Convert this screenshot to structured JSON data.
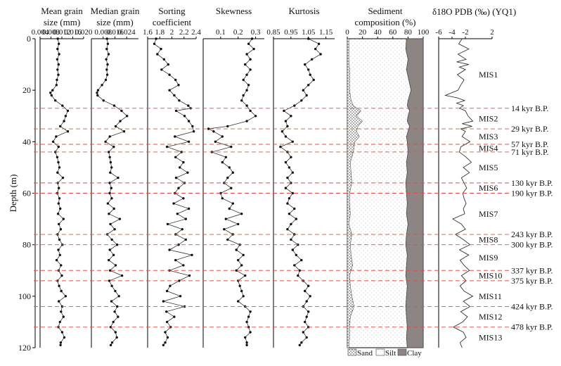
{
  "chart_data": {
    "type": "line",
    "y_axis": {
      "label": "Depth (m)",
      "range": [
        0,
        120
      ],
      "ticks": [
        0,
        20,
        40,
        60,
        80,
        100,
        120
      ]
    },
    "panels": [
      {
        "id": "mean",
        "title": [
          "Mean grain",
          "size (mm)"
        ],
        "xlim": [
          0.004,
          0.02
        ],
        "ticks": [
          "0.004",
          "0.008",
          "0.012",
          "0.016",
          "0.020"
        ],
        "tick_values": [
          0.004,
          0.008,
          0.012,
          0.016,
          0.02
        ],
        "depth": [
          0,
          2,
          4,
          6,
          8,
          10,
          12,
          14,
          16,
          18,
          20,
          21,
          22,
          24,
          26,
          28,
          30,
          32,
          34,
          36,
          38,
          40,
          42,
          44,
          46,
          48,
          50,
          52,
          54,
          56,
          58,
          60,
          62,
          64,
          66,
          68,
          70,
          72,
          74,
          76,
          78,
          80,
          82,
          84,
          86,
          88,
          90,
          92,
          94,
          96,
          98,
          100,
          102,
          104,
          106,
          108,
          110,
          112,
          114,
          116,
          118,
          119
        ],
        "values": [
          0.0105,
          0.0109,
          0.0104,
          0.011,
          0.0103,
          0.0108,
          0.0104,
          0.0107,
          0.0102,
          0.01,
          0.0086,
          0.0078,
          0.0082,
          0.0096,
          0.0122,
          0.0142,
          0.0134,
          0.0128,
          0.0114,
          0.0142,
          0.0099,
          0.0088,
          0.0108,
          0.0096,
          0.0103,
          0.0107,
          0.0111,
          0.0104,
          0.0124,
          0.0105,
          0.0109,
          0.0103,
          0.0111,
          0.0108,
          0.0114,
          0.0106,
          0.0126,
          0.0109,
          0.0116,
          0.0104,
          0.0111,
          0.0122,
          0.0107,
          0.0113,
          0.0101,
          0.0117,
          0.0108,
          0.012,
          0.0104,
          0.011,
          0.0118,
          0.0134,
          0.0109,
          0.0121,
          0.0117,
          0.0126,
          0.0113,
          0.0107,
          0.0121,
          0.0129,
          0.0116,
          0.0115
        ]
      },
      {
        "id": "median",
        "title": [
          "Median grain",
          "size (mm)"
        ],
        "xlim": [
          0.0,
          0.032
        ],
        "ticks": [
          "0.008",
          "0.016",
          "0.024"
        ],
        "tick_values": [
          0.008,
          0.016,
          0.024
        ],
        "depth": [
          0,
          2,
          4,
          6,
          8,
          10,
          12,
          14,
          16,
          18,
          20,
          21,
          22,
          24,
          26,
          28,
          30,
          32,
          34,
          36,
          38,
          40,
          42,
          44,
          46,
          48,
          50,
          52,
          54,
          56,
          58,
          60,
          62,
          64,
          66,
          68,
          70,
          72,
          74,
          76,
          78,
          80,
          82,
          84,
          86,
          88,
          90,
          92,
          94,
          96,
          98,
          100,
          102,
          104,
          106,
          108,
          110,
          112,
          114,
          116,
          118,
          119
        ],
        "values": [
          0.0106,
          0.0112,
          0.0104,
          0.0117,
          0.0101,
          0.011,
          0.0104,
          0.0108,
          0.0098,
          0.0072,
          0.0045,
          0.0038,
          0.0042,
          0.0082,
          0.0155,
          0.0205,
          0.0242,
          0.0196,
          0.0165,
          0.0222,
          0.0125,
          0.0096,
          0.0152,
          0.0118,
          0.0125,
          0.0131,
          0.0137,
          0.0128,
          0.0181,
          0.0124,
          0.0135,
          0.0124,
          0.0138,
          0.0112,
          0.0154,
          0.0119,
          0.0193,
          0.0129,
          0.0158,
          0.0108,
          0.0139,
          0.0175,
          0.0125,
          0.0151,
          0.0118,
          0.0165,
          0.0127,
          0.0208,
          0.0122,
          0.0139,
          0.0162,
          0.0187,
          0.0136,
          0.0176,
          0.0158,
          0.0181,
          0.0149,
          0.0131,
          0.0164,
          0.0173,
          0.0141,
          0.0132
        ]
      },
      {
        "id": "sorting",
        "title": [
          "Sorting",
          "coefficient"
        ],
        "xlim": [
          1.6,
          2.4
        ],
        "ticks": [
          "1.6",
          "1.8",
          "2",
          "2.2",
          "2.4"
        ],
        "tick_values": [
          1.6,
          1.8,
          2.0,
          2.2,
          2.4
        ],
        "depth": [
          0,
          2,
          4,
          6,
          8,
          10,
          12,
          14,
          16,
          18,
          20,
          22,
          24,
          26,
          27,
          28,
          30,
          32,
          34,
          36,
          38,
          40,
          42,
          44,
          46,
          48,
          50,
          52,
          54,
          56,
          58,
          60,
          62,
          64,
          66,
          68,
          70,
          72,
          74,
          76,
          78,
          80,
          82,
          84,
          86,
          88,
          90,
          92,
          94,
          96,
          98,
          100,
          102,
          104,
          106,
          108,
          110,
          112,
          114,
          116,
          118,
          119
        ],
        "values": [
          1.74,
          1.71,
          1.82,
          1.76,
          1.87,
          1.94,
          1.83,
          1.96,
          2.06,
          2.11,
          1.96,
          2.04,
          2.12,
          2.27,
          2.31,
          2.07,
          2.21,
          2.28,
          2.34,
          2.36,
          2.05,
          2.28,
          1.92,
          2.16,
          2.06,
          2.19,
          2.13,
          2.26,
          2.07,
          2.21,
          2.11,
          2.05,
          2.19,
          2.03,
          2.28,
          2.09,
          2.23,
          1.93,
          2.17,
          2.06,
          2.23,
          2.11,
          1.96,
          2.33,
          2.06,
          2.19,
          1.96,
          2.29,
          2.12,
          1.97,
          1.92,
          2.14,
          1.86,
          2.21,
          1.91,
          2.04,
          1.92,
          1.98,
          1.89,
          1.93,
          1.89,
          1.86
        ]
      },
      {
        "id": "skewness",
        "title": [
          "Skewness"
        ],
        "xlim": [
          0.0,
          0.35
        ],
        "ticks": [
          "0.1",
          "0.2",
          "0.3"
        ],
        "tick_values": [
          0.1,
          0.2,
          0.3
        ],
        "depth": [
          0,
          2,
          4,
          6,
          8,
          10,
          12,
          14,
          16,
          18,
          20,
          22,
          24,
          26,
          28,
          30,
          32,
          34,
          35,
          36,
          38,
          40,
          42,
          44,
          46,
          48,
          50,
          52,
          54,
          56,
          58,
          60,
          62,
          64,
          66,
          68,
          70,
          72,
          74,
          76,
          78,
          80,
          82,
          84,
          86,
          88,
          90,
          92,
          94,
          96,
          98,
          100,
          102,
          104,
          106,
          108,
          110,
          112,
          114,
          116,
          118,
          119
        ],
        "values": [
          0.28,
          0.26,
          0.29,
          0.25,
          0.27,
          0.24,
          0.27,
          0.25,
          0.23,
          0.26,
          0.25,
          0.23,
          0.22,
          0.25,
          0.27,
          0.3,
          0.25,
          0.14,
          0.03,
          0.06,
          0.11,
          0.07,
          0.16,
          0.05,
          0.13,
          0.11,
          0.15,
          0.17,
          0.14,
          0.12,
          0.16,
          0.1,
          0.11,
          0.17,
          0.15,
          0.22,
          0.13,
          0.2,
          0.12,
          0.17,
          0.14,
          0.21,
          0.19,
          0.23,
          0.2,
          0.22,
          0.19,
          0.24,
          0.2,
          0.21,
          0.22,
          0.23,
          0.2,
          0.24,
          0.27,
          0.26,
          0.25,
          0.26,
          0.27,
          0.24,
          0.25,
          0.25
        ]
      },
      {
        "id": "kurtosis",
        "title": [
          "Kurtosis"
        ],
        "xlim": [
          0.85,
          1.2
        ],
        "ticks": [
          "0.85",
          "0.95",
          "1.05",
          "1.15"
        ],
        "tick_values": [
          0.85,
          0.95,
          1.05,
          1.15
        ],
        "depth": [
          0,
          2,
          4,
          6,
          8,
          10,
          12,
          14,
          16,
          18,
          20,
          22,
          24,
          26,
          28,
          30,
          32,
          34,
          36,
          38,
          40,
          42,
          44,
          46,
          48,
          50,
          52,
          54,
          56,
          58,
          60,
          62,
          64,
          66,
          68,
          70,
          72,
          74,
          76,
          78,
          80,
          82,
          84,
          86,
          88,
          90,
          92,
          94,
          96,
          98,
          100,
          102,
          104,
          106,
          108,
          110,
          112,
          114,
          116,
          118,
          119
        ],
        "values": [
          1.05,
          1.11,
          1.09,
          1.12,
          1.07,
          1.03,
          1.05,
          1.06,
          1.08,
          1.05,
          1.02,
          1.04,
          1.01,
          0.97,
          0.91,
          0.95,
          0.92,
          0.93,
          0.9,
          0.92,
          0.96,
          0.89,
          0.93,
          0.95,
          0.92,
          0.94,
          0.96,
          0.93,
          0.95,
          0.92,
          0.96,
          0.94,
          0.93,
          0.97,
          0.94,
          0.98,
          0.95,
          0.93,
          0.97,
          0.95,
          0.99,
          0.96,
          0.98,
          1.01,
          0.97,
          1.0,
          0.99,
          1.02,
          1.05,
          1.03,
          1.06,
          1.04,
          1.02,
          1.05,
          1.04,
          1.03,
          1.05,
          1.02,
          1.04,
          1.01,
          1.0
        ]
      },
      {
        "id": "composition",
        "title": [
          "Sediment",
          "composition (%)"
        ],
        "xlim": [
          0,
          100
        ],
        "ticks": [
          "0",
          "20",
          "40",
          "60",
          "80",
          "100"
        ],
        "tick_values": [
          0,
          20,
          40,
          60,
          80,
          100
        ],
        "depth": [
          0,
          4,
          8,
          12,
          16,
          20,
          24,
          26,
          28,
          30,
          32,
          34,
          36,
          38,
          40,
          44,
          48,
          52,
          56,
          60,
          64,
          68,
          72,
          76,
          80,
          84,
          88,
          92,
          96,
          100,
          104,
          108,
          112,
          116,
          120
        ],
        "sand": [
          2,
          2,
          2,
          3,
          3,
          3,
          5,
          8,
          18,
          12,
          20,
          14,
          12,
          16,
          10,
          8,
          4,
          5,
          6,
          3,
          3,
          4,
          2,
          6,
          4,
          5,
          7,
          3,
          4,
          6,
          9,
          4,
          3,
          3,
          2
        ],
        "sand_silt": [
          78,
          77,
          80,
          78,
          81,
          84,
          80,
          79,
          82,
          80,
          79,
          82,
          80,
          78,
          79,
          80,
          78,
          79,
          77,
          78,
          79,
          78,
          80,
          78,
          77,
          79,
          78,
          77,
          79,
          78,
          77,
          78,
          79,
          78,
          79
        ]
      },
      {
        "id": "d18o",
        "title": [
          "δ18O PDB (‰) (YQ1)"
        ],
        "xlim": [
          -6,
          2
        ],
        "ticks": [
          "-6",
          "-4",
          "-2",
          "2"
        ],
        "tick_values": [
          -6,
          -4,
          -2,
          2
        ],
        "depth": [
          0,
          2,
          4,
          6,
          8,
          9,
          10,
          11,
          12,
          14,
          16,
          18,
          20,
          22,
          23,
          24,
          25,
          26,
          27,
          28,
          30,
          32,
          33,
          34,
          35,
          36,
          38,
          40,
          42,
          44,
          46,
          48,
          50,
          52,
          54,
          56,
          58,
          60,
          62,
          64,
          66,
          68,
          70,
          72,
          74,
          76,
          78,
          80,
          82,
          84,
          86,
          88,
          90,
          92,
          94,
          96,
          98,
          100,
          102,
          104,
          106,
          108,
          110,
          112,
          114,
          116,
          118,
          120
        ],
        "values": [
          -2.5,
          -3.0,
          -1.5,
          -3.1,
          -1.9,
          -3.3,
          -1.5,
          -2.9,
          -2.0,
          -3.2,
          -2.2,
          -2.7,
          -3.1,
          -5.0,
          -3.2,
          -2.1,
          -3.3,
          -2.3,
          -2.9,
          -2.0,
          -1.6,
          -0.9,
          -2.5,
          -1.0,
          -2.7,
          -2.0,
          -2.5,
          -1.3,
          -2.7,
          -2.9,
          -1.9,
          -1.1,
          -2.3,
          -1.4,
          -2.6,
          -2.2,
          -1.8,
          -2.4,
          -2.2,
          -1.9,
          -2.3,
          -2.1,
          -3.9,
          -2.6,
          -2.0,
          -3.5,
          -2.3,
          -1.3,
          -2.9,
          -1.5,
          -2.8,
          -2.2,
          -1.4,
          -2.6,
          -1.9,
          -2.8,
          -2.2,
          -0.9,
          -2.3,
          -1.3,
          -2.7,
          -1.7,
          -2.4,
          -3.8,
          -2.3,
          -1.9,
          -2.8,
          -2.5
        ]
      }
    ],
    "composition_legend": [
      "Sand",
      "Silt",
      "Clay"
    ],
    "boundaries": [
      {
        "depth": 27,
        "label": "14 kyr B.P."
      },
      {
        "depth": 35,
        "label": "29 kyr B.P."
      },
      {
        "depth": 41,
        "label": "57 kyr B.P."
      },
      {
        "depth": 44,
        "label": "71 kyr B.P."
      },
      {
        "depth": 56,
        "label": "130 kyr B.P."
      },
      {
        "depth": 60,
        "label": "190 kyr B.P."
      },
      {
        "depth": 76,
        "label": "243 kyr B.P."
      },
      {
        "depth": 80,
        "label": "300 kyr B.P."
      },
      {
        "depth": 90,
        "label": "337 kyr B.P."
      },
      {
        "depth": 94,
        "label": "375 kyr B.P."
      },
      {
        "depth": 104,
        "label": "424 kyr B.P."
      },
      {
        "depth": 112,
        "label": "478 kyr B.P."
      }
    ],
    "mis_labels": [
      {
        "label": "MIS1",
        "depth": 14
      },
      {
        "label": "MIS2",
        "depth": 31
      },
      {
        "label": "MIS3",
        "depth": 38
      },
      {
        "label": "MIS4",
        "depth": 42.5
      },
      {
        "label": "MIS5",
        "depth": 50
      },
      {
        "label": "MIS6",
        "depth": 58
      },
      {
        "label": "MIS7",
        "depth": 68
      },
      {
        "label": "MIS8",
        "depth": 78
      },
      {
        "label": "MIS9",
        "depth": 85
      },
      {
        "label": "MIS10",
        "depth": 92
      },
      {
        "label": "MIS11",
        "depth": 100
      },
      {
        "label": "MIS12",
        "depth": 108
      },
      {
        "label": "MIS13",
        "depth": 116
      }
    ]
  }
}
